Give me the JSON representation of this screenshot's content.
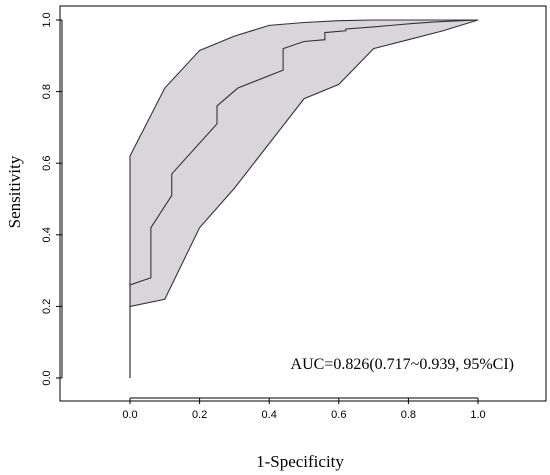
{
  "chart_data": {
    "type": "line",
    "title": "",
    "xlabel": "1-Specificity",
    "ylabel": "Sensitivity",
    "xlim": [
      -0.2,
      1.2
    ],
    "ylim": [
      -0.02,
      1.0
    ],
    "x_ticks": [
      0.0,
      0.2,
      0.4,
      0.6,
      0.8,
      1.0
    ],
    "x_tick_labels": [
      "0.0",
      "0.2",
      "0.4",
      "0.6",
      "0.8",
      "1.0"
    ],
    "y_ticks": [
      0.0,
      0.2,
      0.4,
      0.6,
      0.8,
      1.0
    ],
    "y_tick_labels": [
      "0.0",
      "0.2",
      "0.4",
      "0.6",
      "0.8",
      "1.0"
    ],
    "grid": false,
    "annotation": "AUC=0.826(0.717~0.939, 95%CI)",
    "series": [
      {
        "role": "roc-curve",
        "x": [
          0.0,
          0.0,
          0.06,
          0.06,
          0.12,
          0.12,
          0.25,
          0.25,
          0.31,
          0.44,
          0.44,
          0.5,
          0.56,
          0.56,
          0.62,
          0.62,
          0.69,
          0.75,
          0.81,
          0.88,
          1.0
        ],
        "y": [
          0.0,
          0.26,
          0.28,
          0.42,
          0.51,
          0.57,
          0.71,
          0.76,
          0.81,
          0.86,
          0.92,
          0.94,
          0.945,
          0.965,
          0.97,
          0.975,
          0.98,
          0.985,
          0.99,
          0.995,
          1.0
        ]
      },
      {
        "role": "ci-upper",
        "x": [
          0.0,
          0.0,
          0.1,
          0.2,
          0.3,
          0.4,
          0.5,
          0.6,
          0.7,
          0.8,
          0.9,
          1.0
        ],
        "y": [
          0.0,
          0.62,
          0.81,
          0.915,
          0.955,
          0.985,
          0.993,
          0.998,
          1.0,
          1.0,
          1.0,
          1.0
        ]
      },
      {
        "role": "ci-lower",
        "x": [
          0.0,
          0.0,
          0.1,
          0.2,
          0.3,
          0.4,
          0.5,
          0.6,
          0.7,
          0.8,
          0.9,
          1.0
        ],
        "y": [
          0.0,
          0.2,
          0.22,
          0.42,
          0.53,
          0.655,
          0.78,
          0.82,
          0.92,
          0.945,
          0.97,
          1.0
        ]
      }
    ]
  }
}
